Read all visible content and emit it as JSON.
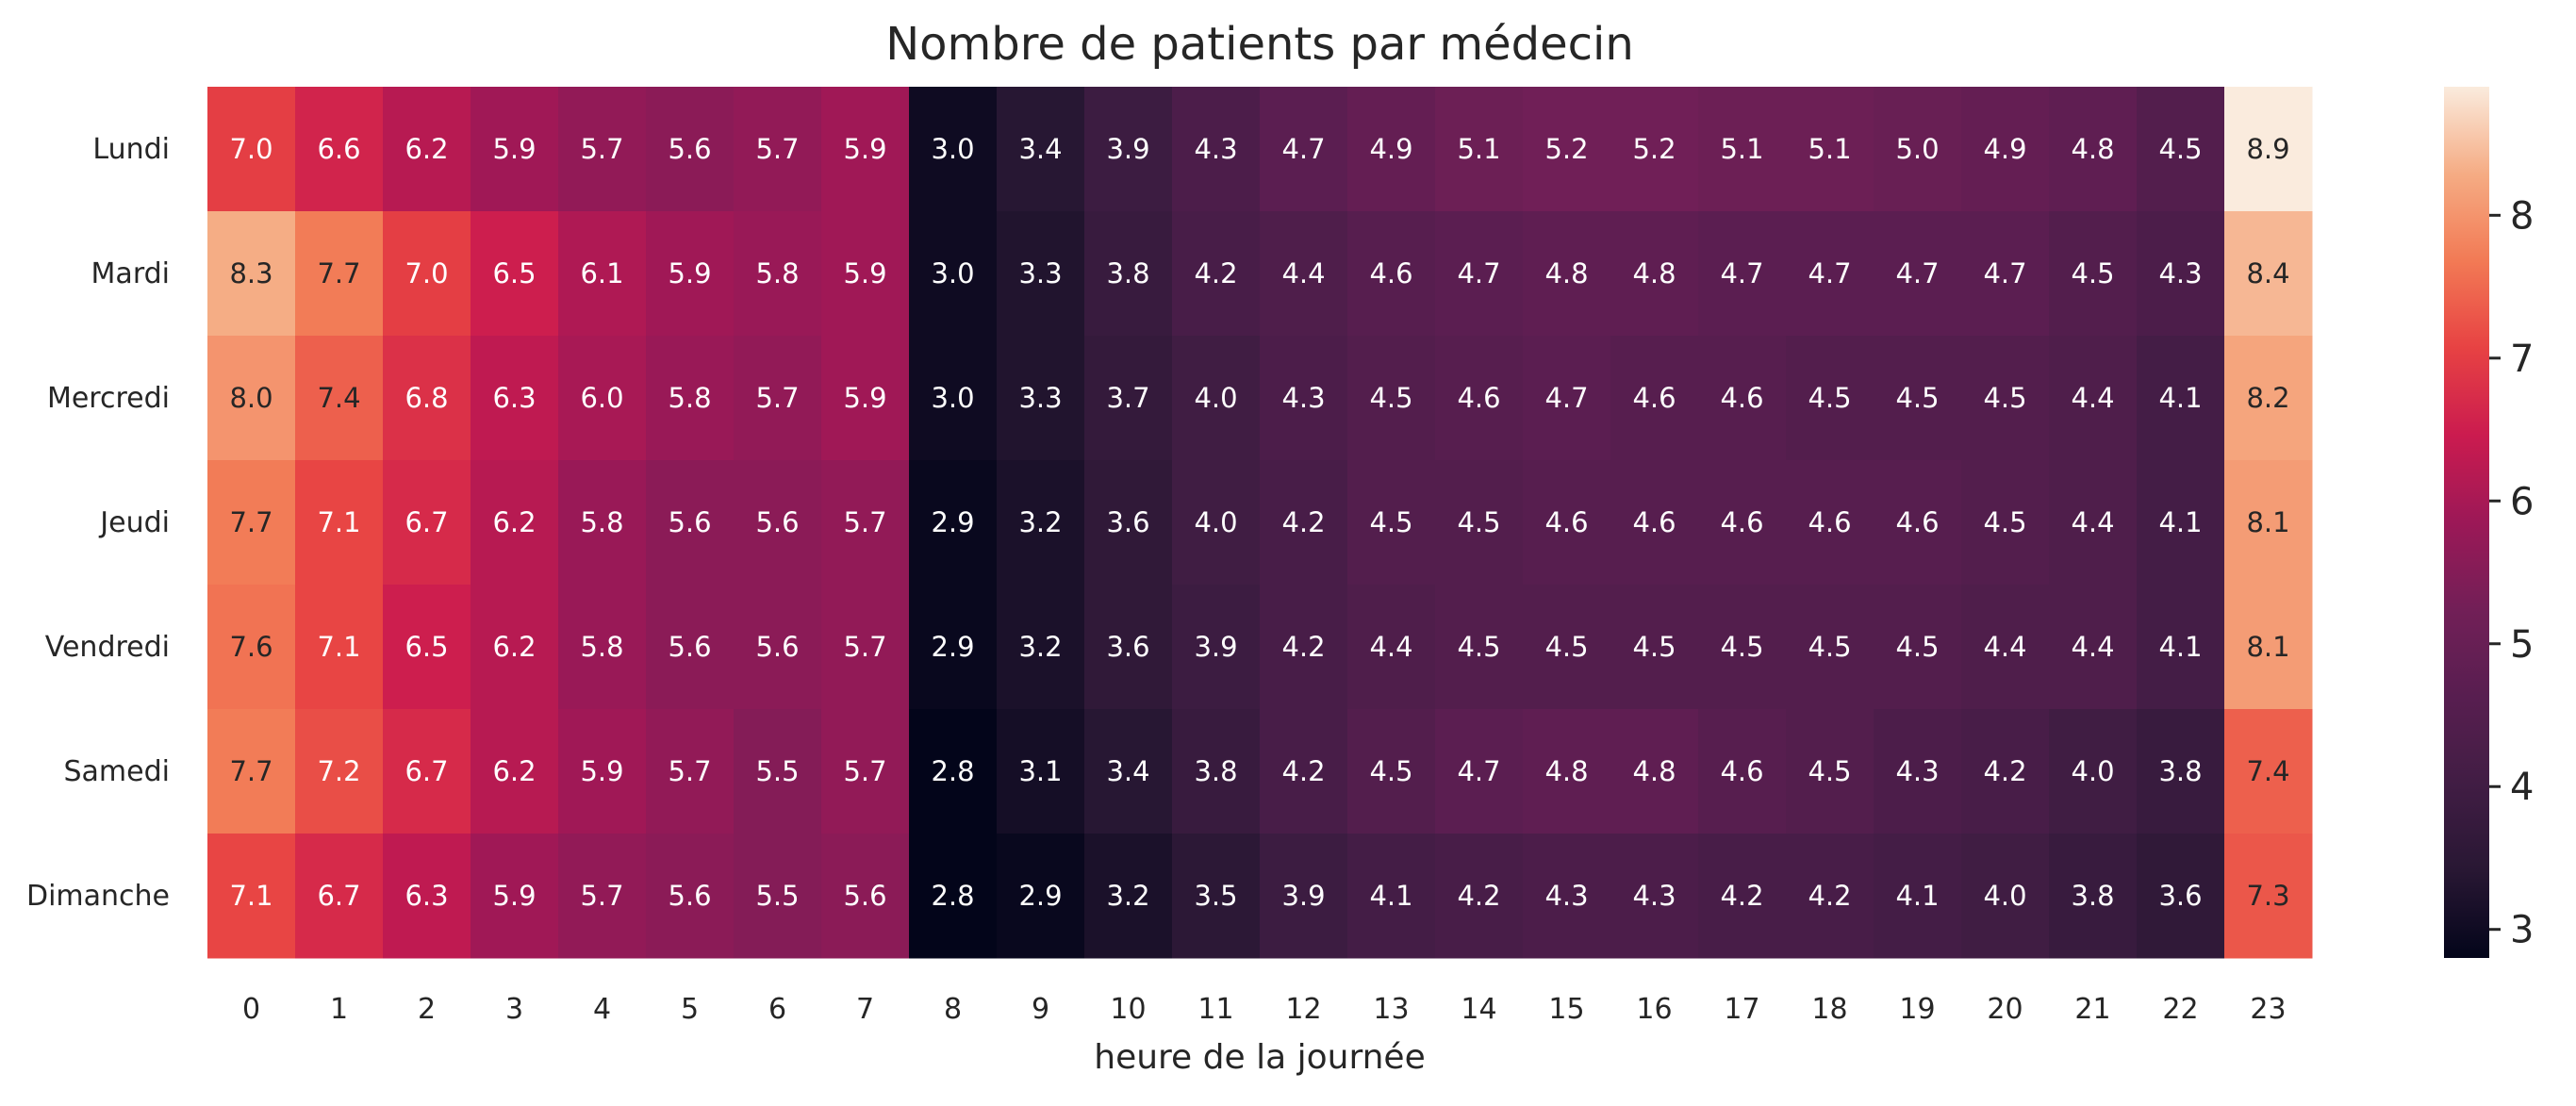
{
  "chart_data": {
    "type": "heatmap",
    "title": "Nombre de patients par médecin",
    "xlabel": "heure de la journée",
    "ylabel": "",
    "x": [
      "0",
      "1",
      "2",
      "3",
      "4",
      "5",
      "6",
      "7",
      "8",
      "9",
      "10",
      "11",
      "12",
      "13",
      "14",
      "15",
      "16",
      "17",
      "18",
      "19",
      "20",
      "21",
      "22",
      "23"
    ],
    "y": [
      "Lundi",
      "Mardi",
      "Mercredi",
      "Jeudi",
      "Vendredi",
      "Samedi",
      "Dimanche"
    ],
    "values": [
      [
        7.0,
        6.6,
        6.2,
        5.9,
        5.7,
        5.6,
        5.7,
        5.9,
        3.0,
        3.4,
        3.9,
        4.3,
        4.7,
        4.9,
        5.1,
        5.2,
        5.2,
        5.1,
        5.1,
        5.0,
        4.9,
        4.8,
        4.5,
        8.9
      ],
      [
        8.3,
        7.7,
        7.0,
        6.5,
        6.1,
        5.9,
        5.8,
        5.9,
        3.0,
        3.3,
        3.8,
        4.2,
        4.4,
        4.6,
        4.7,
        4.8,
        4.8,
        4.7,
        4.7,
        4.7,
        4.7,
        4.5,
        4.3,
        8.4
      ],
      [
        8.0,
        7.4,
        6.8,
        6.3,
        6.0,
        5.8,
        5.7,
        5.9,
        3.0,
        3.3,
        3.7,
        4.0,
        4.3,
        4.5,
        4.6,
        4.7,
        4.6,
        4.6,
        4.5,
        4.5,
        4.5,
        4.4,
        4.1,
        8.2
      ],
      [
        7.7,
        7.1,
        6.7,
        6.2,
        5.8,
        5.6,
        5.6,
        5.7,
        2.9,
        3.2,
        3.6,
        4.0,
        4.2,
        4.5,
        4.5,
        4.6,
        4.6,
        4.6,
        4.6,
        4.6,
        4.5,
        4.4,
        4.1,
        8.1
      ],
      [
        7.6,
        7.1,
        6.5,
        6.2,
        5.8,
        5.6,
        5.6,
        5.7,
        2.9,
        3.2,
        3.6,
        3.9,
        4.2,
        4.4,
        4.5,
        4.5,
        4.5,
        4.5,
        4.5,
        4.5,
        4.4,
        4.4,
        4.1,
        8.1
      ],
      [
        7.7,
        7.2,
        6.7,
        6.2,
        5.9,
        5.7,
        5.5,
        5.7,
        2.8,
        3.1,
        3.4,
        3.8,
        4.2,
        4.5,
        4.7,
        4.8,
        4.8,
        4.6,
        4.5,
        4.3,
        4.2,
        4.0,
        3.8,
        7.4
      ],
      [
        7.1,
        6.7,
        6.3,
        5.9,
        5.7,
        5.6,
        5.5,
        5.6,
        2.8,
        2.9,
        3.2,
        3.5,
        3.9,
        4.1,
        4.2,
        4.3,
        4.3,
        4.2,
        4.2,
        4.1,
        4.0,
        3.8,
        3.6,
        7.3
      ]
    ],
    "value_range": [
      2.8,
      8.9
    ],
    "colormap": "rocket",
    "colorbar": {
      "ticks": [
        "3",
        "4",
        "5",
        "6",
        "7",
        "8"
      ],
      "placement": "right"
    },
    "grid": false
  }
}
